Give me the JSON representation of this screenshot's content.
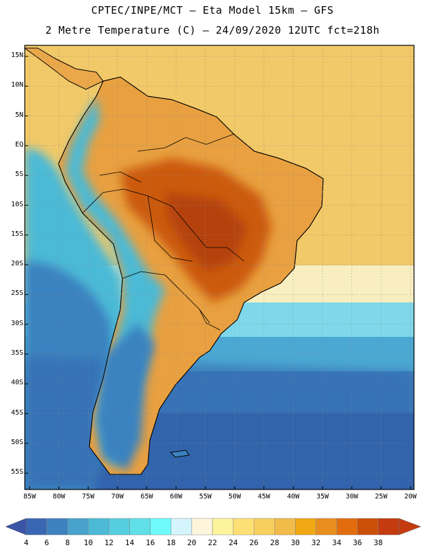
{
  "header": {
    "line1": "CPTEC/INPE/MCT –  Eta Model 15km – GFS",
    "line2": "2 Metre Temperature (C) – 24/09/2020 12UTC fct=218h"
  },
  "map": {
    "lat_labels": [
      "15N",
      "10N",
      "5N",
      "EQ",
      "5S",
      "10S",
      "15S",
      "20S",
      "25S",
      "30S",
      "35S",
      "40S",
      "45S",
      "50S",
      "55S"
    ],
    "lon_labels": [
      "85W",
      "80W",
      "75W",
      "70W",
      "65W",
      "60W",
      "55W",
      "50W",
      "45W",
      "40W",
      "35W",
      "30W",
      "25W",
      "20W"
    ]
  },
  "colorbar": {
    "labels": [
      "4",
      "6",
      "8",
      "10",
      "12",
      "14",
      "16",
      "18",
      "20",
      "22",
      "24",
      "26",
      "28",
      "30",
      "32",
      "34",
      "36",
      "38"
    ],
    "colors": [
      "#3a67b4",
      "#3e81c0",
      "#48a2cc",
      "#4cbad6",
      "#56cde0",
      "#5fdfe7",
      "#6ffbfb",
      "#d4f5fb",
      "#fdf6dc",
      "#fdf39c",
      "#fde075",
      "#f8cf5f",
      "#f1bc4a",
      "#f0a814",
      "#e98d1f",
      "#e26c0e",
      "#cc4f07",
      "#c33b0f"
    ],
    "under_color": "#3b55a6",
    "over_color": "#c33b0f"
  }
}
